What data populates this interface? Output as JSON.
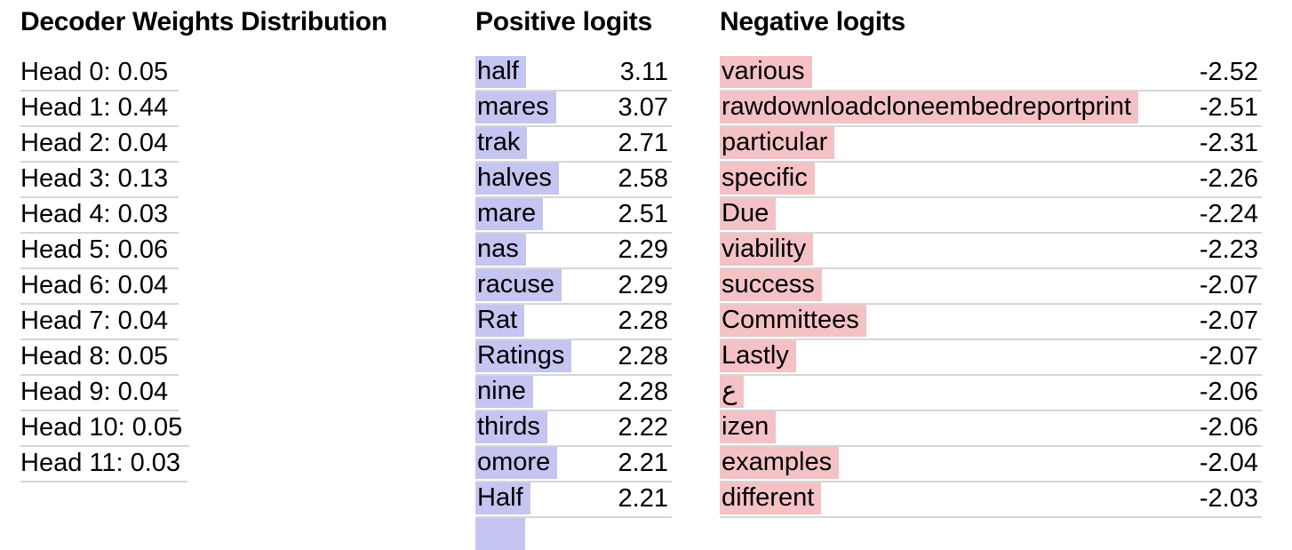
{
  "colors": {
    "positive_highlight": "#c5c5f2",
    "negative_highlight": "#f4c2c5",
    "row_underline": "#d6d6d6",
    "text": "#000000",
    "background": "#ffffff"
  },
  "decoder_weights": {
    "title": "Decoder Weights Distribution",
    "rows": [
      "Head 0: 0.05",
      "Head 1: 0.44",
      "Head 2: 0.04",
      "Head 3: 0.13",
      "Head 4: 0.03",
      "Head 5: 0.06",
      "Head 6: 0.04",
      "Head 7: 0.04",
      "Head 8: 0.05",
      "Head 9: 0.04",
      "Head 10: 0.05",
      "Head 11: 0.03"
    ]
  },
  "positive_logits": {
    "title": "Positive logits",
    "entries": [
      {
        "token": "half",
        "value": "3.11"
      },
      {
        "token": "mares",
        "value": "3.07"
      },
      {
        "token": "trak",
        "value": "2.71"
      },
      {
        "token": "halves",
        "value": "2.58"
      },
      {
        "token": "mare",
        "value": "2.51"
      },
      {
        "token": "nas",
        "value": "2.29"
      },
      {
        "token": "racuse",
        "value": "2.29"
      },
      {
        "token": "Rat",
        "value": "2.28"
      },
      {
        "token": "Ratings",
        "value": "2.28"
      },
      {
        "token": "nine",
        "value": "2.28"
      },
      {
        "token": "thirds",
        "value": "2.22"
      },
      {
        "token": "omore",
        "value": "2.21"
      },
      {
        "token": "Half",
        "value": "2.21"
      }
    ],
    "partial_next_row_bar_visible": true
  },
  "negative_logits": {
    "title": "Negative logits",
    "entries": [
      {
        "token": "various",
        "value": "-2.52"
      },
      {
        "token": "rawdownloadcloneembedreportprint",
        "value": "-2.51"
      },
      {
        "token": "particular",
        "value": "-2.31"
      },
      {
        "token": "specific",
        "value": "-2.26"
      },
      {
        "token": "Due",
        "value": "-2.24"
      },
      {
        "token": "viability",
        "value": "-2.23"
      },
      {
        "token": "success",
        "value": "-2.07"
      },
      {
        "token": "Committees",
        "value": "-2.07"
      },
      {
        "token": "Lastly",
        "value": "-2.07"
      },
      {
        "token": "ع",
        "value": "-2.06"
      },
      {
        "token": "izen",
        "value": "-2.06"
      },
      {
        "token": "examples",
        "value": "-2.04"
      },
      {
        "token": "different",
        "value": "-2.03"
      }
    ]
  }
}
